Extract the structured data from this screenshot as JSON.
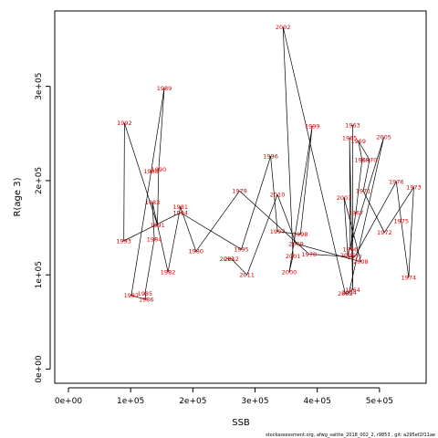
{
  "chart_data": {
    "type": "scatter",
    "connected": true,
    "xlabel": "SSB",
    "ylabel": "R(age 3)",
    "xlim": [
      -22000,
      575000
    ],
    "ylim": [
      -15000,
      380000
    ],
    "x_ticks": [
      {
        "value": 0,
        "label": "0e+00"
      },
      {
        "value": 100000,
        "label": "1e+05"
      },
      {
        "value": 200000,
        "label": "2e+05"
      },
      {
        "value": 300000,
        "label": "3e+05"
      },
      {
        "value": 400000,
        "label": "4e+05"
      },
      {
        "value": 500000,
        "label": "5e+05"
      }
    ],
    "y_ticks": [
      {
        "value": 0,
        "label": "0e+00"
      },
      {
        "value": 100000,
        "label": "1e+05"
      },
      {
        "value": 200000,
        "label": "2e+05"
      },
      {
        "value": 300000,
        "label": "3e+05"
      }
    ],
    "points": [
      {
        "label": "1963",
        "x": 457000,
        "y": 259000
      },
      {
        "label": "1964",
        "x": 457000,
        "y": 84000
      },
      {
        "label": "1965",
        "x": 452000,
        "y": 245000
      },
      {
        "label": "1966",
        "x": 453000,
        "y": 127000
      },
      {
        "label": "1967",
        "x": 462000,
        "y": 166000
      },
      {
        "label": "1968",
        "x": 472000,
        "y": 222000
      },
      {
        "label": "1969",
        "x": 466000,
        "y": 242000
      },
      {
        "label": "1970",
        "x": 484000,
        "y": 222000
      },
      {
        "label": "1971",
        "x": 474000,
        "y": 189000
      },
      {
        "label": "1972",
        "x": 508000,
        "y": 145000
      },
      {
        "label": "1973",
        "x": 555000,
        "y": 193000
      },
      {
        "label": "1974",
        "x": 547000,
        "y": 97000
      },
      {
        "label": "1975",
        "x": 535000,
        "y": 157000
      },
      {
        "label": "1976",
        "x": 527000,
        "y": 199000
      },
      {
        "label": "1977",
        "x": 460000,
        "y": 119000
      },
      {
        "label": "1978",
        "x": 387000,
        "y": 122000
      },
      {
        "label": "1979",
        "x": 275000,
        "y": 189000
      },
      {
        "label": "1980",
        "x": 205000,
        "y": 125000
      },
      {
        "label": "1981",
        "x": 180000,
        "y": 172000
      },
      {
        "label": "1982",
        "x": 160000,
        "y": 103000
      },
      {
        "label": "1983",
        "x": 135000,
        "y": 177000
      },
      {
        "label": "1984",
        "x": 138000,
        "y": 138000
      },
      {
        "label": "1985",
        "x": 123000,
        "y": 80000
      },
      {
        "label": "1986",
        "x": 125000,
        "y": 74000
      },
      {
        "label": "1987",
        "x": 101000,
        "y": 78000
      },
      {
        "label": "1988",
        "x": 133000,
        "y": 210000
      },
      {
        "label": "1989",
        "x": 154000,
        "y": 298000
      },
      {
        "label": "1990",
        "x": 145000,
        "y": 212000
      },
      {
        "label": "1991",
        "x": 143000,
        "y": 153000
      },
      {
        "label": "1992",
        "x": 90000,
        "y": 261000
      },
      {
        "label": "1993",
        "x": 89000,
        "y": 136000
      },
      {
        "label": "1994",
        "x": 180000,
        "y": 166000
      },
      {
        "label": "1995",
        "x": 278000,
        "y": 127000
      },
      {
        "label": "1996",
        "x": 325000,
        "y": 226000
      },
      {
        "label": "1997",
        "x": 336000,
        "y": 146000
      },
      {
        "label": "1998",
        "x": 373000,
        "y": 143000
      },
      {
        "label": "1999",
        "x": 392000,
        "y": 258000
      },
      {
        "label": "2000",
        "x": 355000,
        "y": 103000
      },
      {
        "label": "2001",
        "x": 361000,
        "y": 120000
      },
      {
        "label": "2002",
        "x": 345000,
        "y": 363000
      },
      {
        "label": "2003",
        "x": 445000,
        "y": 80000
      },
      {
        "label": "2004",
        "x": 451000,
        "y": 81000
      },
      {
        "label": "2005",
        "x": 507000,
        "y": 246000
      },
      {
        "label": "2006",
        "x": 449000,
        "y": 121000
      },
      {
        "label": "2007",
        "x": 443000,
        "y": 182000
      },
      {
        "label": "2008",
        "x": 470000,
        "y": 114000
      },
      {
        "label": "2009",
        "x": 366000,
        "y": 133000
      },
      {
        "label": "2010",
        "x": 336000,
        "y": 185000
      },
      {
        "label": "2011",
        "x": 287000,
        "y": 100000
      },
      {
        "label": "2012",
        "x": 262000,
        "y": 117000
      },
      {
        "label": "2013",
        "x": 255000,
        "y": 117000
      }
    ]
  },
  "footer": "stockassessment.org, afwg_saithe_2018_002_2, r9853 , git: a295ef2f11ae"
}
